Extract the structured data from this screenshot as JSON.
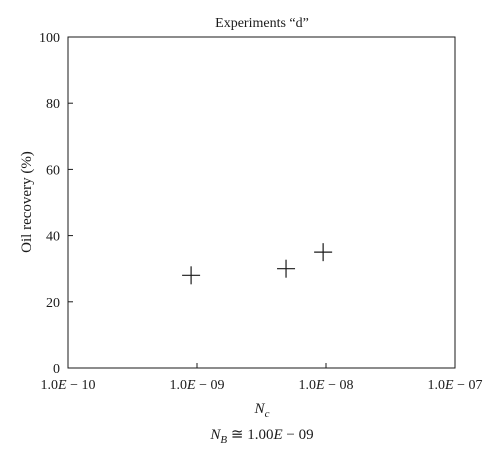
{
  "chart_data": {
    "type": "scatter",
    "title": "Experiments “d”",
    "xlabel": "N",
    "xlabel_sub": "c",
    "ylabel": "Oil recovery (%)",
    "x_scale": "log",
    "xlim": [
      1e-10,
      1e-07
    ],
    "ylim": [
      0,
      100
    ],
    "x_ticks": [
      1e-10,
      1e-09,
      1e-08,
      1e-07
    ],
    "x_tick_labels": [
      {
        "mantissa": "1.0",
        "e": "E",
        "exp": " − 10"
      },
      {
        "mantissa": "1.0",
        "e": "E",
        "exp": " − 09"
      },
      {
        "mantissa": "1.0",
        "e": "E",
        "exp": " − 08"
      },
      {
        "mantissa": "1.0",
        "e": "E",
        "exp": " − 07"
      }
    ],
    "y_ticks": [
      0,
      20,
      40,
      60,
      80,
      100
    ],
    "grid": false,
    "marker": "plus",
    "points": [
      {
        "x": 9e-10,
        "y": 28
      },
      {
        "x": 4.9e-09,
        "y": 30
      },
      {
        "x": 9.5e-09,
        "y": 35
      }
    ],
    "note": {
      "N": "N",
      "sub": "B",
      "rest": " ≅ 1.00",
      "e": "E",
      "exp": " − 09"
    }
  }
}
